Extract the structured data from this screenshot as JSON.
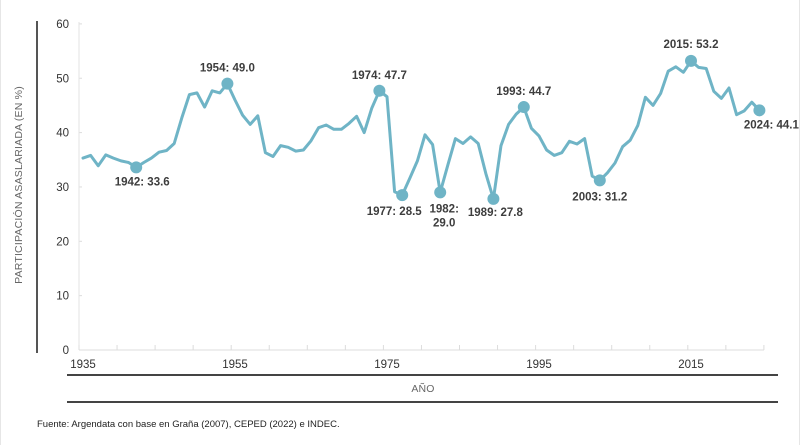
{
  "chart_data": {
    "type": "line",
    "title": "",
    "xlabel": "AÑO",
    "ylabel": "PARTICIPACIÓN ASASLARIADA  (EN %)",
    "xlim": [
      1935,
      2024
    ],
    "ylim": [
      0,
      60
    ],
    "yticks": [
      0,
      10,
      20,
      30,
      40,
      50,
      60
    ],
    "xtick_labels": [
      "1935",
      "1955",
      "1975",
      "1995",
      "2015"
    ],
    "grid": false,
    "line_color": "#6fb4c6",
    "series": [
      {
        "name": "Participación asalariada",
        "x": [
          1935,
          1936,
          1937,
          1938,
          1939,
          1940,
          1941,
          1942,
          1943,
          1944,
          1945,
          1946,
          1947,
          1948,
          1949,
          1950,
          1951,
          1952,
          1953,
          1954,
          1955,
          1956,
          1957,
          1958,
          1959,
          1960,
          1961,
          1962,
          1963,
          1964,
          1965,
          1966,
          1967,
          1968,
          1969,
          1970,
          1971,
          1972,
          1973,
          1974,
          1975,
          1976,
          1977,
          1978,
          1979,
          1980,
          1981,
          1982,
          1983,
          1984,
          1985,
          1986,
          1987,
          1988,
          1989,
          1990,
          1991,
          1992,
          1993,
          1994,
          1995,
          1996,
          1997,
          1998,
          1999,
          2000,
          2001,
          2002,
          2003,
          2004,
          2005,
          2006,
          2007,
          2008,
          2009,
          2010,
          2011,
          2012,
          2013,
          2014,
          2015,
          2016,
          2017,
          2018,
          2019,
          2020,
          2021,
          2022,
          2023,
          2024
        ],
        "values": [
          35.3,
          35.8,
          33.9,
          35.9,
          35.3,
          34.8,
          34.5,
          33.6,
          34.5,
          35.3,
          36.4,
          36.7,
          38.0,
          42.7,
          47.0,
          47.3,
          44.7,
          47.7,
          47.3,
          49.0,
          46.0,
          43.2,
          41.5,
          43.1,
          36.3,
          35.6,
          37.6,
          37.3,
          36.6,
          36.8,
          38.5,
          40.9,
          41.4,
          40.6,
          40.6,
          41.7,
          43.0,
          40.0,
          44.5,
          47.7,
          46.6,
          29.1,
          28.5,
          31.6,
          34.8,
          39.6,
          37.8,
          29.0,
          34.0,
          38.9,
          38.0,
          39.2,
          38.0,
          32.5,
          27.8,
          37.6,
          41.5,
          43.4,
          44.7,
          40.8,
          39.4,
          36.8,
          35.8,
          36.3,
          38.4,
          37.9,
          38.9,
          32.0,
          31.2,
          32.6,
          34.4,
          37.4,
          38.6,
          41.3,
          46.5,
          45.0,
          47.2,
          51.3,
          52.1,
          51.1,
          53.2,
          52.0,
          51.8,
          47.6,
          46.3,
          48.2,
          43.3,
          44.0,
          45.6,
          44.1
        ]
      }
    ],
    "annotations": [
      {
        "year": 1942,
        "value": 33.6,
        "text": "1942:  33.6",
        "position": "below"
      },
      {
        "year": 1954,
        "value": 49.0,
        "text": "1954:  49.0",
        "position": "above"
      },
      {
        "year": 1974,
        "value": 47.7,
        "text": "1974:  47.7",
        "position": "above"
      },
      {
        "year": 1977,
        "value": 28.5,
        "text": "1977:  28.5",
        "position": "below"
      },
      {
        "year": 1982,
        "value": 29.0,
        "text": [
          "1982:",
          "29.0"
        ],
        "position": "below"
      },
      {
        "year": 1989,
        "value": 27.8,
        "text": "1989:  27.8",
        "position": "below"
      },
      {
        "year": 1993,
        "value": 44.7,
        "text": "1993:  44.7",
        "position": "above"
      },
      {
        "year": 2003,
        "value": 31.2,
        "text": "2003:  31.2",
        "position": "below"
      },
      {
        "year": 2015,
        "value": 53.2,
        "text": "2015:  53.2",
        "position": "above"
      },
      {
        "year": 2024,
        "value": 44.1,
        "text": "2024: 44.1",
        "position": "below"
      }
    ]
  },
  "source": "Fuente: Argendata con base en Graña (2007), CEPED (2022) e INDEC."
}
